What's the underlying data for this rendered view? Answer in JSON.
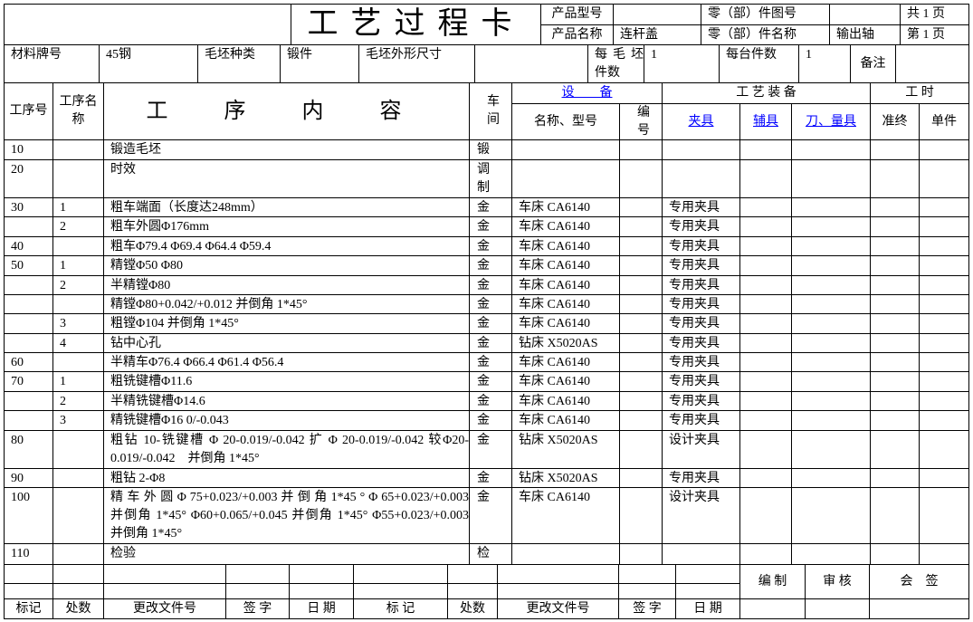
{
  "header": {
    "title": "工艺过程卡",
    "product_model_label": "产品型号",
    "product_model_value": "",
    "part_drawing_no_label": "零（部）件图号",
    "part_drawing_no_value": "",
    "total_pages": "共 1 页",
    "product_name_label": "产品名称",
    "product_name_value": "连杆盖",
    "part_name_label": "零（部）件名称",
    "part_name_value": "输出轴",
    "page_no": "第 1 页"
  },
  "material": {
    "grade_label": "材料牌号",
    "grade_value": "45钢",
    "blank_type_label": "毛坯种类",
    "blank_type_value": "锻件",
    "blank_size_label": "毛坯外形尺寸",
    "per_blank_label": "每 毛 坯 件数",
    "per_blank_value": "1",
    "per_unit_label": "每台件数",
    "per_unit_value": "1",
    "remark_label": "备注"
  },
  "columns": {
    "op_no": "工序号",
    "op_name": "工序名称",
    "content": "工 序 内 容",
    "shop": "车间",
    "equipment": "设　　备",
    "equip_name": "名称、型号",
    "equip_no": "编号",
    "tooling": "工 艺 装 备",
    "fixture": "夹具",
    "aux": "辅具",
    "tools": "刀、量具",
    "time": "工 时",
    "setup": "准终",
    "unit": "单件"
  },
  "colors": {
    "link": "#0000ff",
    "border": "#000000"
  },
  "rows": [
    {
      "no": "10",
      "step": "",
      "content": "锻造毛坯",
      "shop": "锻",
      "equipment": "",
      "fixture": ""
    },
    {
      "no": "20",
      "step": "",
      "content": "时效",
      "shop": "调制",
      "equipment": "",
      "fixture": ""
    },
    {
      "no": "30",
      "step": "1",
      "content": "粗车端面（长度达248mm）",
      "shop": "金",
      "equipment": "车床 CA6140",
      "fixture": "专用夹具"
    },
    {
      "no": "",
      "step": "2",
      "content": "粗车外圆Φ176mm",
      "shop": "金",
      "equipment": "车床 CA6140",
      "fixture": "专用夹具"
    },
    {
      "no": "40",
      "step": "",
      "content": "粗车Φ79.4 Φ69.4 Φ64.4 Φ59.4",
      "shop": "金",
      "equipment": "车床 CA6140",
      "fixture": "专用夹具"
    },
    {
      "no": "50",
      "step": "1",
      "content": "精镗Φ50 Φ80",
      "shop": "金",
      "equipment": "车床 CA6140",
      "fixture": "专用夹具"
    },
    {
      "no": "",
      "step": "2",
      "content": "半精镗Φ80",
      "shop": "金",
      "equipment": "车床 CA6140",
      "fixture": "专用夹具"
    },
    {
      "no": "",
      "step": "",
      "content": "精镗Φ80+0.042/+0.012 并倒角 1*45°",
      "shop": "金",
      "equipment": "车床 CA6140",
      "fixture": "专用夹具"
    },
    {
      "no": "",
      "step": "3",
      "content": "粗镗Φ104 并倒角 1*45°",
      "shop": "金",
      "equipment": "车床 CA6140",
      "fixture": "专用夹具"
    },
    {
      "no": "",
      "step": "4",
      "content": "钻中心孔",
      "shop": "金",
      "equipment": "钻床 X5020AS",
      "fixture": "专用夹具"
    },
    {
      "no": "60",
      "step": "",
      "content": "半精车Φ76.4 Φ66.4 Φ61.4 Φ56.4",
      "shop": "金",
      "equipment": "车床 CA6140",
      "fixture": "专用夹具"
    },
    {
      "no": "70",
      "step": "1",
      "content": "粗铣键槽Φ11.6",
      "shop": "金",
      "equipment": "车床 CA6140",
      "fixture": "专用夹具"
    },
    {
      "no": "",
      "step": "2",
      "content": "半精铣键槽Φ14.6",
      "shop": "金",
      "equipment": "车床 CA6140",
      "fixture": "专用夹具"
    },
    {
      "no": "",
      "step": "3",
      "content": "精铣键槽Φ16 0/-0.043",
      "shop": "金",
      "equipment": "车床 CA6140",
      "fixture": "专用夹具"
    },
    {
      "no": "80",
      "step": "",
      "content": "粗钻 10-铣键槽 Φ 20-0.019/-0.042 扩 Φ 20-0.019/-0.042 较Φ20-0.019/-0.042　并倒角 1*45°",
      "shop": "金",
      "equipment": "钻床 X5020AS",
      "fixture": "设计夹具"
    },
    {
      "no": "90",
      "step": "",
      "content": "粗钻 2-Φ8",
      "shop": "金",
      "equipment": "钻床 X5020AS",
      "fixture": "专用夹具"
    },
    {
      "no": "100",
      "step": "",
      "content": "精 车 外 圆 Φ 75+0.023/+0.003 并 倒 角 1*45 ° Φ 65+0.023/+0.003 并倒角 1*45° Φ60+0.065/+0.045 并倒角 1*45° Φ55+0.023/+0.003 并倒角 1*45°",
      "shop": "金",
      "equipment": "车床 CA6140",
      "fixture": "设计夹具"
    },
    {
      "no": "110",
      "step": "",
      "content": "检验",
      "shop": "检",
      "equipment": "",
      "fixture": ""
    }
  ],
  "footer": {
    "mark": "标记",
    "count": "处数",
    "change_doc": "更改文件号",
    "sign": "签 字",
    "date": "日 期",
    "mark2": "标 记",
    "count2": "处数",
    "change_doc2": "更改文件号",
    "sign2": "签 字",
    "date2": "日 期",
    "compile": "编 制",
    "review": "审 核",
    "countersign": "会　签"
  }
}
